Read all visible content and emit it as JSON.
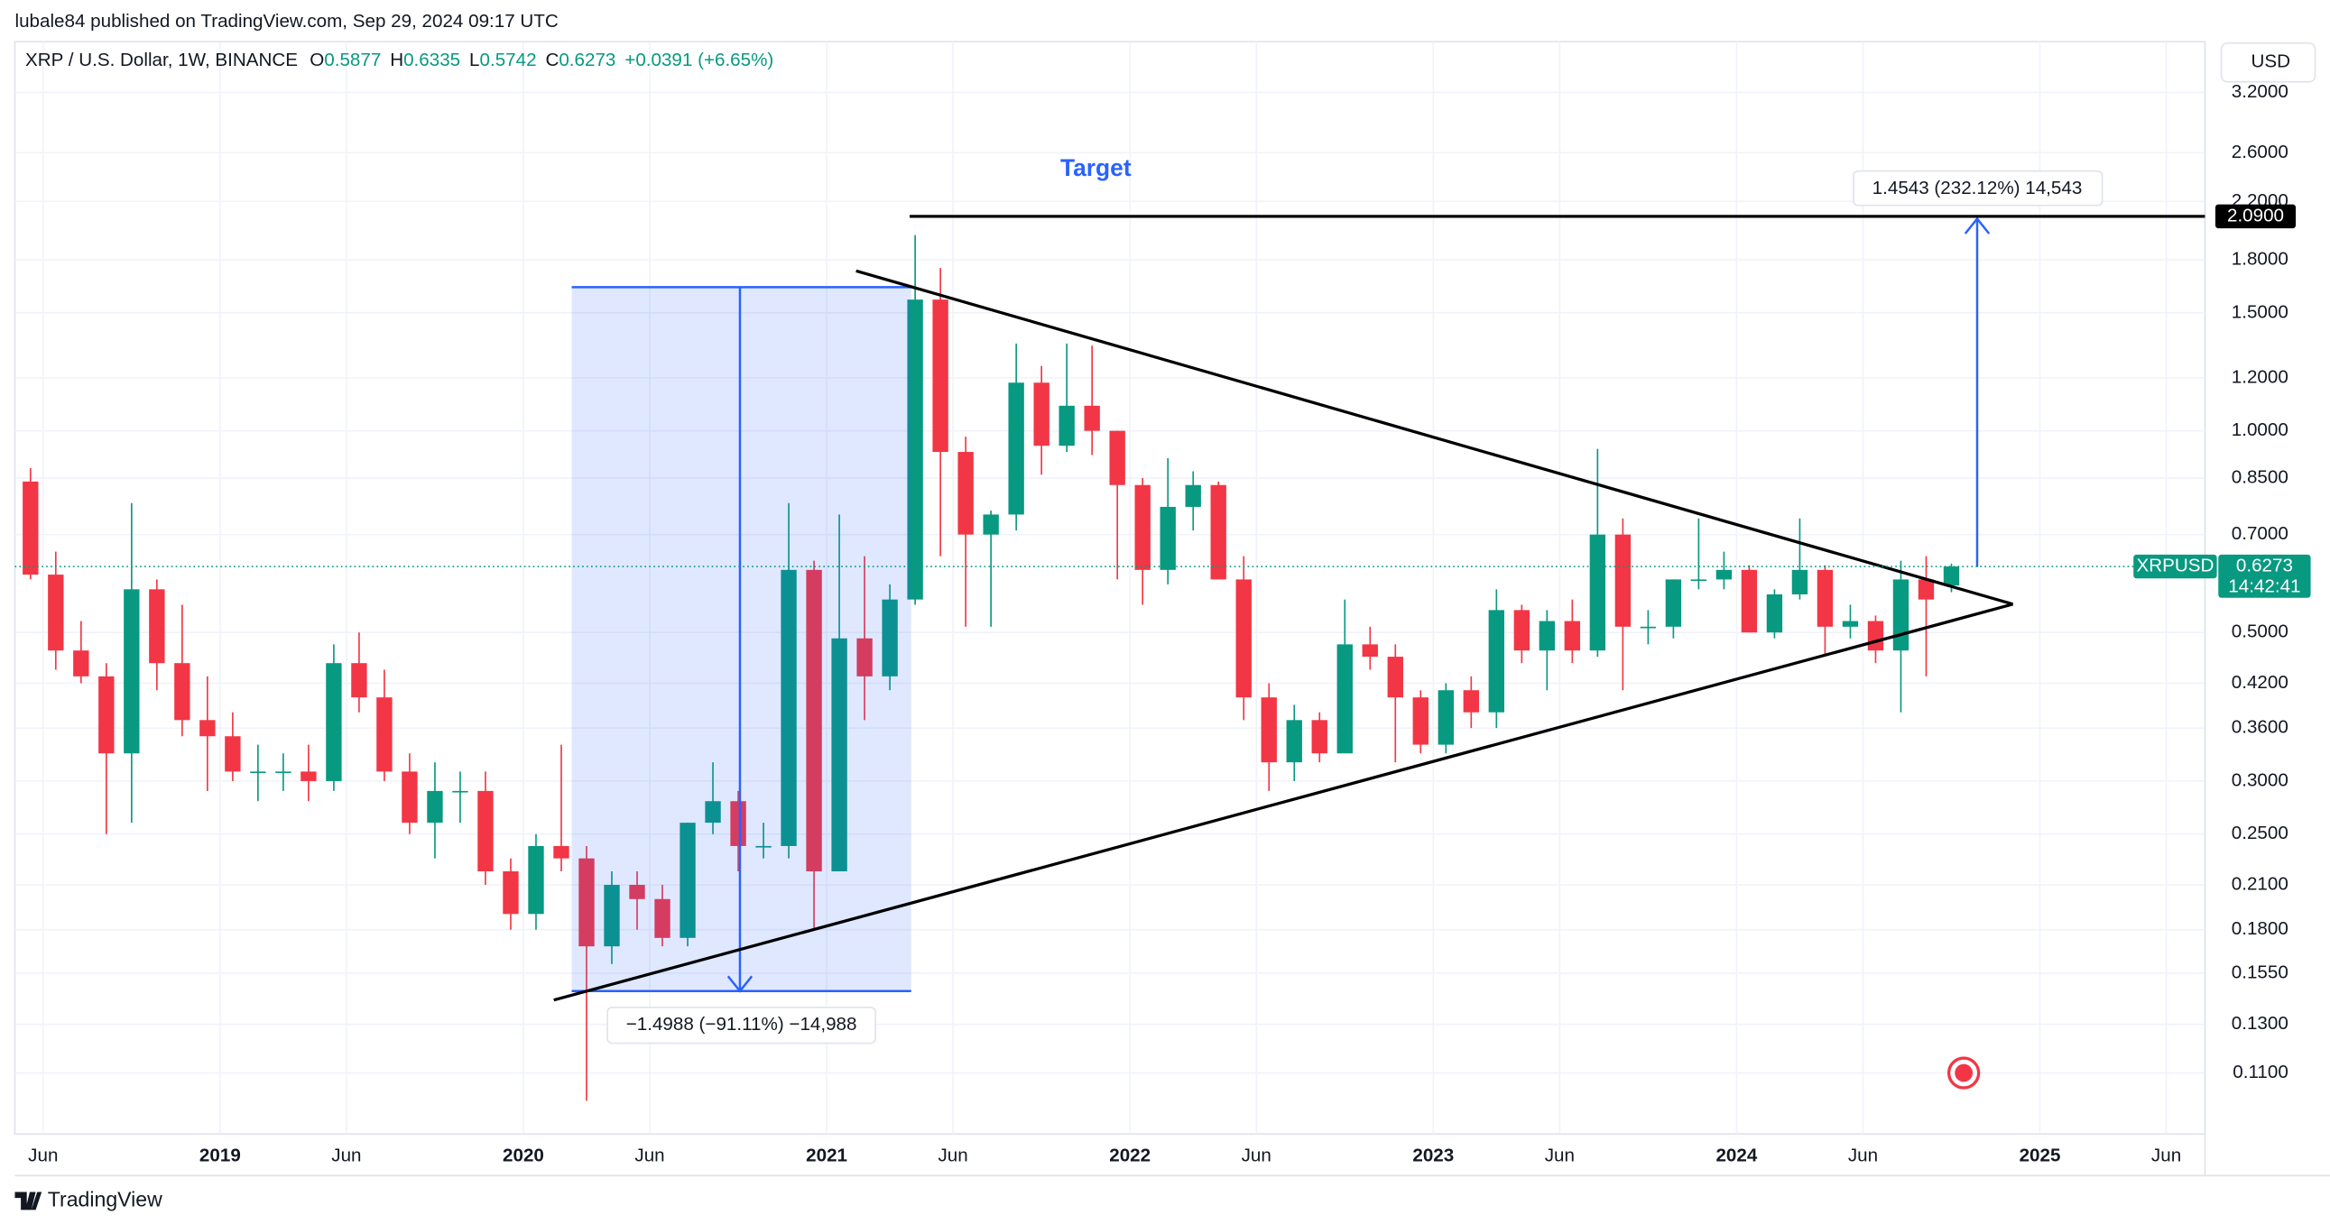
{
  "header": {
    "published": "lubale84 published on TradingView.com, Sep 29, 2024 09:17 UTC",
    "symbol": "XRP / U.S. Dollar, 1W, BINANCE",
    "ohlc": [
      {
        "label": "O",
        "value": "0.5877"
      },
      {
        "label": "H",
        "value": "0.6335"
      },
      {
        "label": "L",
        "value": "0.5742"
      },
      {
        "label": "C",
        "value": "0.6273"
      }
    ],
    "change": "+0.0391 (+6.65%)",
    "currency": "USD"
  },
  "footer": {
    "brand": "TradingView"
  },
  "chart_data": {
    "type": "candlestick",
    "x": [
      "2018-05",
      "2018-06",
      "2018-07",
      "2018-08",
      "2018-09",
      "2018-10",
      "2018-11",
      "2018-12",
      "2019-01",
      "2019-02",
      "2019-03",
      "2019-04",
      "2019-05",
      "2019-06",
      "2019-07",
      "2019-08",
      "2019-09",
      "2019-10",
      "2019-11",
      "2019-12",
      "2020-01",
      "2020-02",
      "2020-03",
      "2020-04",
      "2020-05",
      "2020-06",
      "2020-07",
      "2020-08",
      "2020-09",
      "2020-10",
      "2020-11",
      "2020-12",
      "2021-01",
      "2021-02",
      "2021-03",
      "2021-04",
      "2021-05",
      "2021-06",
      "2021-07",
      "2021-08",
      "2021-09",
      "2021-10",
      "2021-11",
      "2021-12",
      "2022-01",
      "2022-02",
      "2022-03",
      "2022-04",
      "2022-05",
      "2022-06",
      "2022-07",
      "2022-08",
      "2022-09",
      "2022-10",
      "2022-11",
      "2022-12",
      "2023-01",
      "2023-02",
      "2023-03",
      "2023-04",
      "2023-05",
      "2023-06",
      "2023-07",
      "2023-08",
      "2023-09",
      "2023-10",
      "2023-11",
      "2023-12",
      "2024-01",
      "2024-02",
      "2024-03",
      "2024-04",
      "2024-05",
      "2024-06",
      "2024-07",
      "2024-08",
      "2024-09"
    ],
    "open": [
      0.84,
      0.61,
      0.47,
      0.43,
      0.33,
      0.58,
      0.45,
      0.37,
      0.35,
      0.31,
      0.31,
      0.31,
      0.3,
      0.45,
      0.4,
      0.31,
      0.26,
      0.29,
      0.29,
      0.22,
      0.19,
      0.24,
      0.23,
      0.17,
      0.21,
      0.2,
      0.175,
      0.26,
      0.28,
      0.24,
      0.24,
      0.62,
      0.22,
      0.49,
      0.43,
      0.56,
      1.57,
      0.93,
      0.7,
      0.75,
      1.18,
      0.95,
      1.09,
      1.0,
      0.83,
      0.62,
      0.77,
      0.83,
      0.6,
      0.4,
      0.32,
      0.37,
      0.33,
      0.48,
      0.46,
      0.4,
      0.34,
      0.41,
      0.38,
      0.54,
      0.47,
      0.52,
      0.47,
      0.7,
      0.51,
      0.51,
      0.6,
      0.6,
      0.62,
      0.5,
      0.57,
      0.62,
      0.51,
      0.52,
      0.47,
      0.6,
      0.5877
    ],
    "high": [
      0.88,
      0.66,
      0.52,
      0.45,
      0.78,
      0.6,
      0.55,
      0.43,
      0.38,
      0.34,
      0.33,
      0.34,
      0.48,
      0.5,
      0.44,
      0.33,
      0.32,
      0.31,
      0.31,
      0.23,
      0.25,
      0.34,
      0.24,
      0.22,
      0.22,
      0.21,
      0.26,
      0.32,
      0.29,
      0.26,
      0.78,
      0.64,
      0.75,
      0.65,
      0.59,
      1.96,
      1.75,
      0.98,
      0.76,
      1.35,
      1.25,
      1.35,
      1.34,
      1.0,
      0.85,
      0.91,
      0.87,
      0.84,
      0.65,
      0.42,
      0.39,
      0.38,
      0.56,
      0.51,
      0.48,
      0.41,
      0.42,
      0.43,
      0.58,
      0.55,
      0.54,
      0.56,
      0.94,
      0.74,
      0.54,
      0.6,
      0.74,
      0.66,
      0.63,
      0.58,
      0.74,
      0.63,
      0.55,
      0.53,
      0.64,
      0.65,
      0.6335
    ],
    "low": [
      0.6,
      0.44,
      0.42,
      0.25,
      0.26,
      0.41,
      0.35,
      0.29,
      0.3,
      0.28,
      0.29,
      0.28,
      0.29,
      0.38,
      0.3,
      0.25,
      0.23,
      0.26,
      0.21,
      0.18,
      0.18,
      0.22,
      0.1,
      0.16,
      0.18,
      0.17,
      0.17,
      0.25,
      0.22,
      0.23,
      0.23,
      0.18,
      0.22,
      0.37,
      0.41,
      0.55,
      0.65,
      0.51,
      0.51,
      0.71,
      0.86,
      0.93,
      0.92,
      0.6,
      0.55,
      0.59,
      0.71,
      0.6,
      0.37,
      0.29,
      0.3,
      0.32,
      0.33,
      0.44,
      0.32,
      0.33,
      0.33,
      0.36,
      0.36,
      0.45,
      0.41,
      0.45,
      0.46,
      0.41,
      0.48,
      0.49,
      0.58,
      0.58,
      0.5,
      0.49,
      0.56,
      0.46,
      0.49,
      0.45,
      0.38,
      0.43,
      0.5742
    ],
    "close": [
      0.61,
      0.47,
      0.43,
      0.33,
      0.58,
      0.45,
      0.37,
      0.35,
      0.31,
      0.31,
      0.31,
      0.3,
      0.45,
      0.4,
      0.31,
      0.26,
      0.29,
      0.29,
      0.22,
      0.19,
      0.24,
      0.23,
      0.17,
      0.21,
      0.2,
      0.175,
      0.26,
      0.28,
      0.24,
      0.24,
      0.62,
      0.22,
      0.49,
      0.43,
      0.56,
      1.57,
      0.93,
      0.7,
      0.75,
      1.18,
      0.95,
      1.09,
      1.0,
      0.83,
      0.62,
      0.77,
      0.83,
      0.6,
      0.4,
      0.32,
      0.37,
      0.33,
      0.48,
      0.46,
      0.4,
      0.34,
      0.41,
      0.38,
      0.54,
      0.47,
      0.52,
      0.47,
      0.7,
      0.51,
      0.51,
      0.6,
      0.6,
      0.62,
      0.5,
      0.57,
      0.62,
      0.51,
      0.52,
      0.47,
      0.6,
      0.56,
      0.6273
    ],
    "up_color": "#089981",
    "down_color": "#f23645",
    "log_scale": true,
    "grid": true,
    "xlim": [
      "2018-05",
      "2025-07"
    ],
    "xticks": [
      {
        "value": "2018-06",
        "label": "Jun"
      },
      {
        "value": "2019-01",
        "label": "2019"
      },
      {
        "value": "2019-06",
        "label": "Jun"
      },
      {
        "value": "2020-01",
        "label": "2020"
      },
      {
        "value": "2020-06",
        "label": "Jun"
      },
      {
        "value": "2021-01",
        "label": "2021"
      },
      {
        "value": "2021-06",
        "label": "Jun"
      },
      {
        "value": "2022-01",
        "label": "2022"
      },
      {
        "value": "2022-06",
        "label": "Jun"
      },
      {
        "value": "2023-01",
        "label": "2023"
      },
      {
        "value": "2023-06",
        "label": "Jun"
      },
      {
        "value": "2024-01",
        "label": "2024"
      },
      {
        "value": "2024-06",
        "label": "Jun"
      },
      {
        "value": "2025-01",
        "label": "2025"
      },
      {
        "value": "2025-06",
        "label": "Jun"
      }
    ],
    "ylim": [
      0.0892,
      3.81
    ],
    "yticks": [
      {
        "value": 3.2,
        "label": "3.2000"
      },
      {
        "value": 2.6,
        "label": "2.6000"
      },
      {
        "value": 2.2,
        "label": "2.2000"
      },
      {
        "value": 1.8,
        "label": "1.8000"
      },
      {
        "value": 1.5,
        "label": "1.5000"
      },
      {
        "value": 1.2,
        "label": "1.2000"
      },
      {
        "value": 1.0,
        "label": "1.0000"
      },
      {
        "value": 0.85,
        "label": "0.8500"
      },
      {
        "value": 0.7,
        "label": "0.7000"
      },
      {
        "value": 0.5,
        "label": "0.5000"
      },
      {
        "value": 0.42,
        "label": "0.4200"
      },
      {
        "value": 0.36,
        "label": "0.3600"
      },
      {
        "value": 0.3,
        "label": "0.3000"
      },
      {
        "value": 0.25,
        "label": "0.2500"
      },
      {
        "value": 0.21,
        "label": "0.2100"
      },
      {
        "value": 0.18,
        "label": "0.1800"
      },
      {
        "value": 0.155,
        "label": "0.1550"
      },
      {
        "value": 0.13,
        "label": "0.1300"
      },
      {
        "value": 0.11,
        "label": "0.1100"
      }
    ],
    "target_line": {
      "value": 2.09,
      "label": "2.0900"
    },
    "last_price": {
      "value": 0.6273,
      "label": "0.6273",
      "symbol": "XRPUSD",
      "countdown": "14:42:41"
    },
    "annotations": {
      "target": "Target",
      "rise_measure": "1.4543 (232.12%) 14,543",
      "drop_measure": "−1.4988 (−91.11%) −14,988"
    }
  }
}
